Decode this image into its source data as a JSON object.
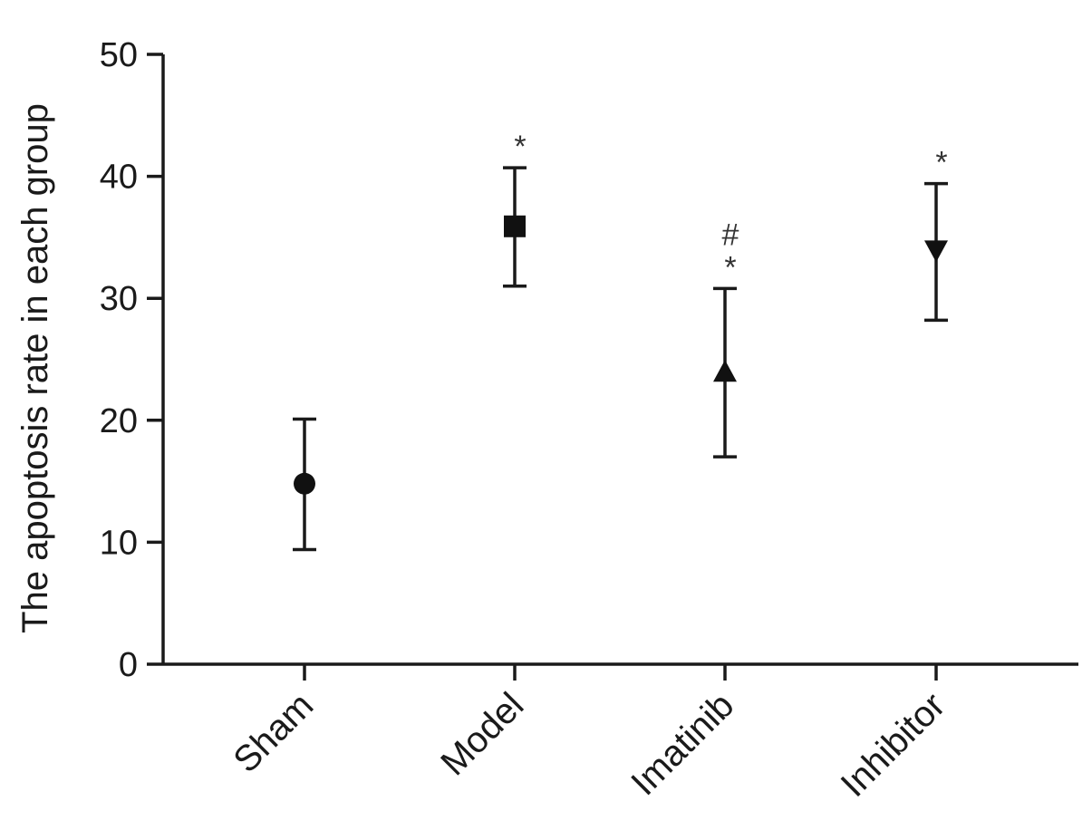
{
  "chart_data": {
    "type": "scatter",
    "title": "",
    "xlabel": "",
    "ylabel": "The apoptosis rate in each group",
    "ylim": [
      0,
      50
    ],
    "yticks": [
      0,
      10,
      20,
      30,
      40,
      50
    ],
    "grid": false,
    "legend": "none",
    "categories": [
      "Sham",
      "Model",
      "Imatinib",
      "Inhibitor"
    ],
    "series": [
      {
        "values": [
          14.8,
          35.9,
          23.9,
          34.0
        ],
        "error_low": [
          9.4,
          31.0,
          17.0,
          28.2
        ],
        "error_high": [
          20.1,
          40.7,
          30.8,
          39.4
        ],
        "markers": [
          "circle",
          "square",
          "triangle-up",
          "triangle-down"
        ],
        "color": "#111111"
      }
    ],
    "annotations": [
      {
        "category": "Model",
        "lines": [
          "*"
        ]
      },
      {
        "category": "Imatinib",
        "lines": [
          "#",
          "*"
        ]
      },
      {
        "category": "Inhibitor",
        "lines": [
          "*"
        ]
      }
    ]
  }
}
